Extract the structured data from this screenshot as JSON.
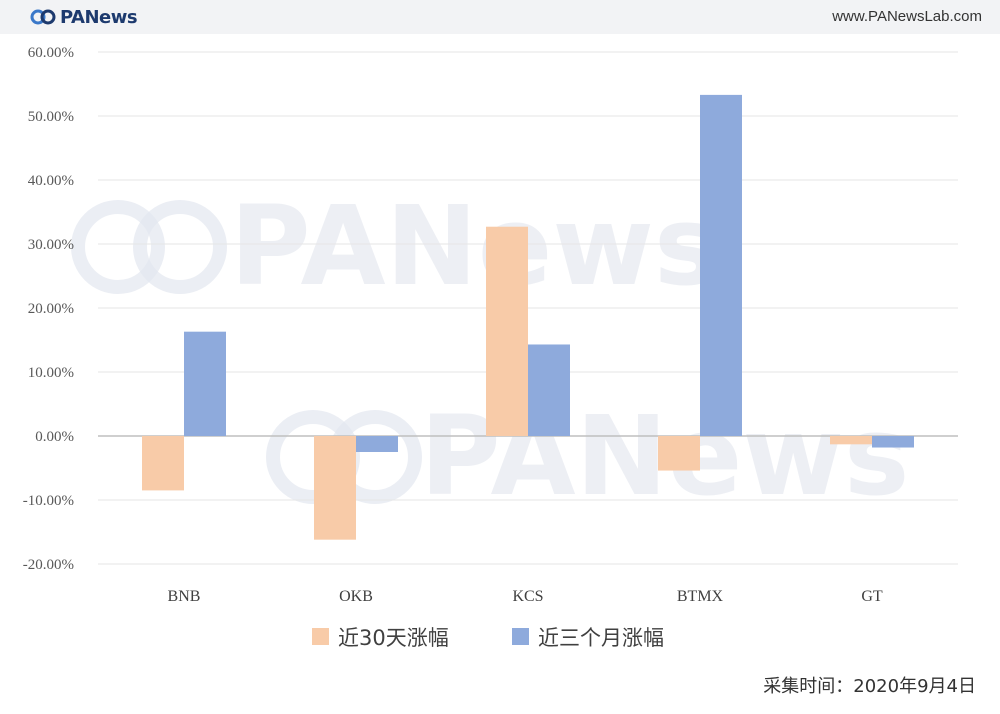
{
  "header": {
    "logo_text": "PANews",
    "site_url": "www.PANewsLab.com"
  },
  "watermark": {
    "text": "PANews"
  },
  "footer": {
    "note": "采集时间：2020年9月4日"
  },
  "colors": {
    "series_30d": "#f8cba8",
    "series_3m": "#8eaadc",
    "grid": "#e6e6e6",
    "zero_line": "#bfbfbf"
  },
  "chart_data": {
    "type": "bar",
    "categories": [
      "BNB",
      "OKB",
      "KCS",
      "BTMX",
      "GT"
    ],
    "series": [
      {
        "name": "近30天涨幅",
        "values": [
          -8.5,
          -16.2,
          32.7,
          -5.4,
          -1.3
        ]
      },
      {
        "name": "近三个月涨幅",
        "values": [
          16.3,
          -2.5,
          14.3,
          53.3,
          -1.8
        ]
      }
    ],
    "y_ticks": [
      "60.00%",
      "50.00%",
      "40.00%",
      "30.00%",
      "20.00%",
      "10.00%",
      "0.00%",
      "-10.00%",
      "-20.00%"
    ],
    "ylim": [
      -20,
      60
    ],
    "y_unit": "%",
    "grid": true,
    "legend_position": "bottom"
  }
}
